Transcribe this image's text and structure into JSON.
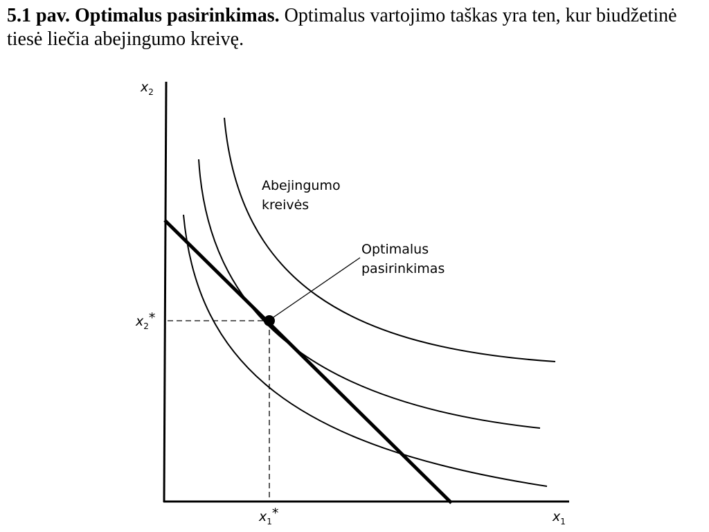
{
  "caption": {
    "label": "5.1 pav. Optimalus pasirinkimas.",
    "text": "Optimalus vartojimo taškas yra ten, kur biudžetinė tiesė liečia abejingumo kreivę."
  },
  "axes": {
    "y": {
      "symbol": "x",
      "subscript": "2"
    },
    "x": {
      "symbol": "x",
      "subscript": "1"
    },
    "y_star": {
      "symbol": "x",
      "subscript": "2",
      "suffix": "*"
    },
    "x_star": {
      "symbol": "x",
      "subscript": "1",
      "suffix": "*"
    }
  },
  "annotations": {
    "curves": [
      "Abejingumo",
      "kreivės"
    ],
    "optimum": [
      "Optimalus",
      "pasirinkimas"
    ]
  }
}
